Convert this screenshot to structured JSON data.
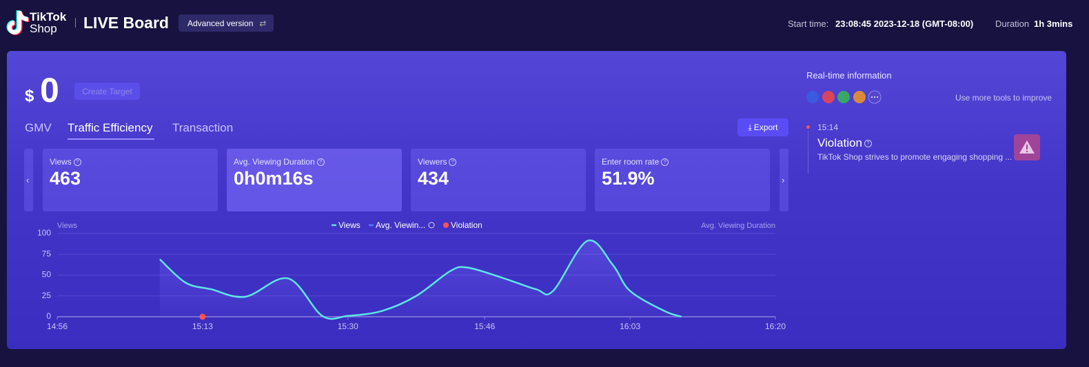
{
  "header": {
    "logo_top": "TikTok",
    "logo_bottom": "Shop",
    "title": "LIVE Board",
    "version_button": "Advanced version",
    "start_time_label": "Start time:",
    "start_time": "23:08:45 2023-12-18 (GMT-08:00)",
    "duration_label": "Duration",
    "duration": "1h 3mins"
  },
  "summary": {
    "currency": "$",
    "amount": 0,
    "target_button": "Create Target"
  },
  "tabs": [
    "GMV",
    "Traffic Efficiency",
    "Transaction"
  ],
  "export_button": "Export",
  "metrics": [
    {
      "label": "Views",
      "value": "463"
    },
    {
      "label": "Avg. Viewing Duration",
      "value": "0h0m16s"
    },
    {
      "label": "Viewers",
      "value": "434"
    },
    {
      "label": "Enter room rate",
      "value": "51.9%"
    }
  ],
  "chart_data": {
    "type": "line",
    "y_label": "Views",
    "y2_label": "Avg. Viewing Duration",
    "xlim": [
      "14:56",
      "16:20"
    ],
    "xticks": [
      "14:56",
      "15:13",
      "15:30",
      "15:46",
      "16:03",
      "16:20"
    ],
    "ylim": [
      0,
      100
    ],
    "yticks": [
      0,
      25,
      50,
      75,
      100
    ],
    "grid": true,
    "series": [
      {
        "name": "Views",
        "color": "#5ee6e6",
        "x": [
          "15:08",
          "15:11",
          "15:14",
          "15:18",
          "15:23",
          "15:27",
          "15:30",
          "15:34",
          "15:38",
          "15:42",
          "15:44",
          "15:48",
          "15:52",
          "15:54",
          "15:58",
          "16:01",
          "16:03",
          "16:07",
          "16:09"
        ],
        "values": [
          69,
          41,
          33,
          24,
          46,
          1,
          1,
          7,
          25,
          55,
          59,
          47,
          33,
          31,
          91,
          62,
          31,
          7,
          0
        ]
      },
      {
        "name": "Avg. Viewin...",
        "color": "#4f7dff",
        "axis": "y2",
        "x": [],
        "values": []
      },
      {
        "name": "Violation",
        "color": "#ff5252",
        "x": [
          "15:13"
        ],
        "values": [
          0
        ]
      }
    ]
  },
  "realtime": {
    "title": "Real-time information",
    "tools_hint": "Use more tools to improve",
    "events": [
      {
        "time": "15:14",
        "title": "Violation",
        "description": "TikTok Shop strives to promote engaging shopping ..."
      }
    ]
  }
}
